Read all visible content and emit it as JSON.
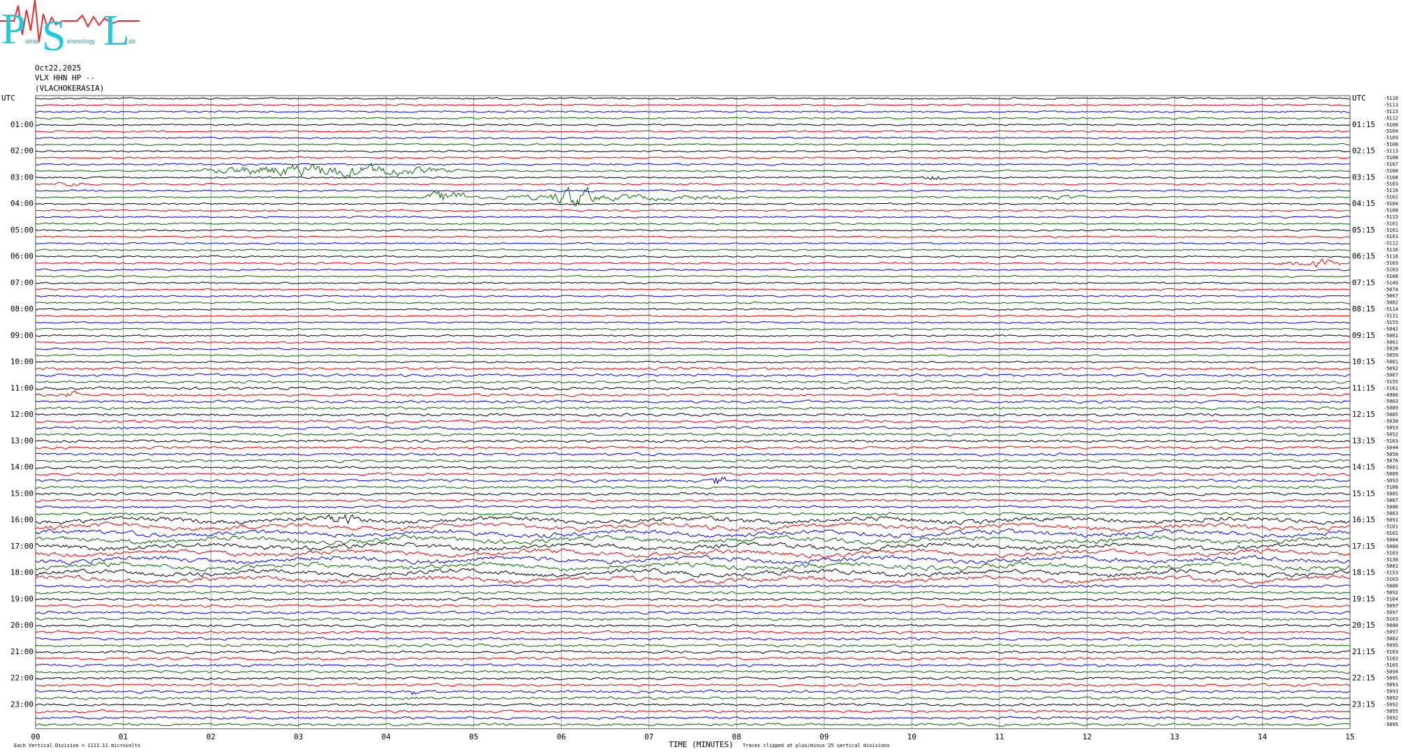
{
  "header": {
    "logo": {
      "letters": [
        "P",
        "S",
        "L"
      ],
      "small": [
        "atras",
        "eismology",
        "ab"
      ]
    },
    "date": "Oct22,2025",
    "station": "VLX HHN HP --",
    "location": "(VLACHOKERASIA)"
  },
  "left_labels": [
    "UTC",
    "01:00",
    "02:00",
    "03:00",
    "04:00",
    "05:00",
    "06:00",
    "07:00",
    "08:00",
    "09:00",
    "10:00",
    "11:00",
    "12:00",
    "13:00",
    "14:00",
    "15:00",
    "16:00",
    "17:00",
    "18:00",
    "19:00",
    "20:00",
    "21:00",
    "22:00",
    "23:00"
  ],
  "right_labels": [
    "UTC",
    "01:15",
    "02:15",
    "03:15",
    "04:15",
    "05:15",
    "06:15",
    "07:15",
    "08:15",
    "09:15",
    "10:15",
    "11:15",
    "12:15",
    "13:15",
    "14:15",
    "15:15",
    "16:15",
    "17:15",
    "18:15",
    "19:15",
    "20:15",
    "21:15",
    "22:15",
    "23:15"
  ],
  "trace_labels": [
    "-5110",
    "-5113",
    "-5113",
    "-5112",
    "-5108",
    "-5104",
    "-5109",
    "-5108",
    "-5113",
    "-5108",
    "-5107",
    "-5108",
    "-5108",
    "-5103",
    "-5116",
    "-5101",
    "-5104",
    "-5108",
    "-5115",
    "-5101",
    "-5101",
    "-5101",
    "-5112",
    "-5116",
    "-5118",
    "-5103",
    "-5103",
    "-5108",
    "-5149",
    "-5074",
    "-5067",
    "-5082",
    "-5114",
    "-5131",
    "-5155",
    "-5042",
    "-5061",
    "-5061",
    "-5028",
    "-5059",
    "-5081",
    "-5092",
    "-5067",
    "-5155",
    "-5161",
    "-4986",
    "-5063",
    "-5089",
    "-5085",
    "-5038",
    "-5053",
    "-5052",
    "-5103",
    "-5044",
    "-5050",
    "-5076",
    "-5081",
    "-5089",
    "-5093",
    "-5108",
    "-5085",
    "-5087",
    "-5080",
    "-5083",
    "-5091",
    "-5101",
    "-5101",
    "-5084",
    "-5080",
    "-5103",
    "-5130",
    "-5081",
    "-5153",
    "-5103",
    "-5086",
    "-5092",
    "-5104",
    "-5097",
    "-5097",
    "-5103",
    "-5080",
    "-5097",
    "-5082",
    "-5095",
    "-5103",
    "-5103",
    "-5105",
    "-5094",
    "-5095",
    "-5091",
    "-5093",
    "-5092",
    "-5092",
    "-5095",
    "-5092",
    "-5095"
  ],
  "x_labels": [
    "00",
    "01",
    "02",
    "03",
    "04",
    "05",
    "06",
    "07",
    "08",
    "09",
    "10",
    "11",
    "12",
    "13",
    "14",
    "15"
  ],
  "x_title": "TIME (MINUTES)",
  "footer": {
    "scale_note": "Each Vertical Division = 1111.11 microvolts",
    "clip_note": "Traces clipped at plus/minus 25 vertical divisions"
  }
}
